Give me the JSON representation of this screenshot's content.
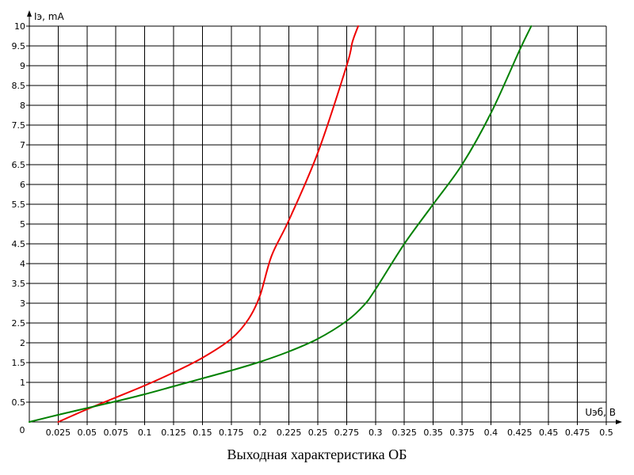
{
  "chart_data": {
    "type": "line",
    "title": "Выходная характеристика ОБ",
    "xlabel": "Uэб, В",
    "ylabel": "Iэ, mA",
    "origin_label": "0",
    "xlim": [
      0,
      0.5
    ],
    "ylim": [
      0,
      10
    ],
    "x_ticks": [
      "0.025",
      "0.05",
      "0.075",
      "0.1",
      "0.125",
      "0.15",
      "0.175",
      "0.2",
      "0.225",
      "0.25",
      "0.275",
      "0.3",
      "0.325",
      "0.35",
      "0.375",
      "0.4",
      "0.425",
      "0.45",
      "0.475",
      "0.5"
    ],
    "y_ticks": [
      "0.5",
      "1",
      "1.5",
      "2",
      "2.5",
      "3",
      "3.5",
      "4",
      "4.5",
      "5",
      "5.5",
      "6",
      "6.5",
      "7",
      "7.5",
      "8",
      "8.5",
      "9",
      "9.5",
      "10"
    ],
    "grid": true,
    "series": [
      {
        "color": "#ee0000",
        "x": [
          0.025,
          0.05,
          0.075,
          0.1,
          0.125,
          0.15,
          0.175,
          0.19,
          0.2,
          0.21,
          0.225,
          0.25,
          0.275,
          0.28,
          0.285
        ],
        "y": [
          0.0,
          0.32,
          0.62,
          0.92,
          1.25,
          1.62,
          2.1,
          2.6,
          3.2,
          4.2,
          5.1,
          6.8,
          9.0,
          9.6,
          10.0
        ]
      },
      {
        "color": "#008000",
        "x": [
          0.0,
          0.025,
          0.05,
          0.075,
          0.1,
          0.125,
          0.15,
          0.175,
          0.2,
          0.225,
          0.25,
          0.275,
          0.29,
          0.3,
          0.325,
          0.35,
          0.375,
          0.4,
          0.425,
          0.435
        ],
        "y": [
          0.0,
          0.18,
          0.35,
          0.52,
          0.7,
          0.9,
          1.1,
          1.3,
          1.52,
          1.78,
          2.1,
          2.55,
          2.95,
          3.35,
          4.5,
          5.5,
          6.5,
          7.8,
          9.4,
          10.0
        ]
      }
    ]
  }
}
